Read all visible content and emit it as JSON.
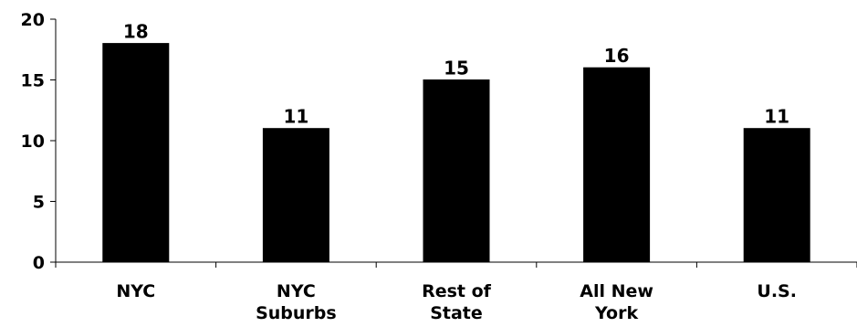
{
  "chart_data": {
    "type": "bar",
    "categories": [
      [
        "NYC"
      ],
      [
        "NYC",
        "Suburbs"
      ],
      [
        "Rest of",
        "State"
      ],
      [
        "All New",
        "York"
      ],
      [
        "U.S."
      ]
    ],
    "values": [
      18,
      11,
      15,
      16,
      11
    ],
    "data_labels": [
      "18",
      "11",
      "15",
      "16",
      "11"
    ],
    "ylim": [
      0,
      20
    ],
    "yticks": [
      0,
      5,
      10,
      15,
      20
    ],
    "ytick_labels": [
      "0",
      "5",
      "10",
      "15",
      "20"
    ],
    "title": "",
    "xlabel": "",
    "ylabel": "",
    "grid": false,
    "legend": "none",
    "bar_color": "#000000"
  }
}
